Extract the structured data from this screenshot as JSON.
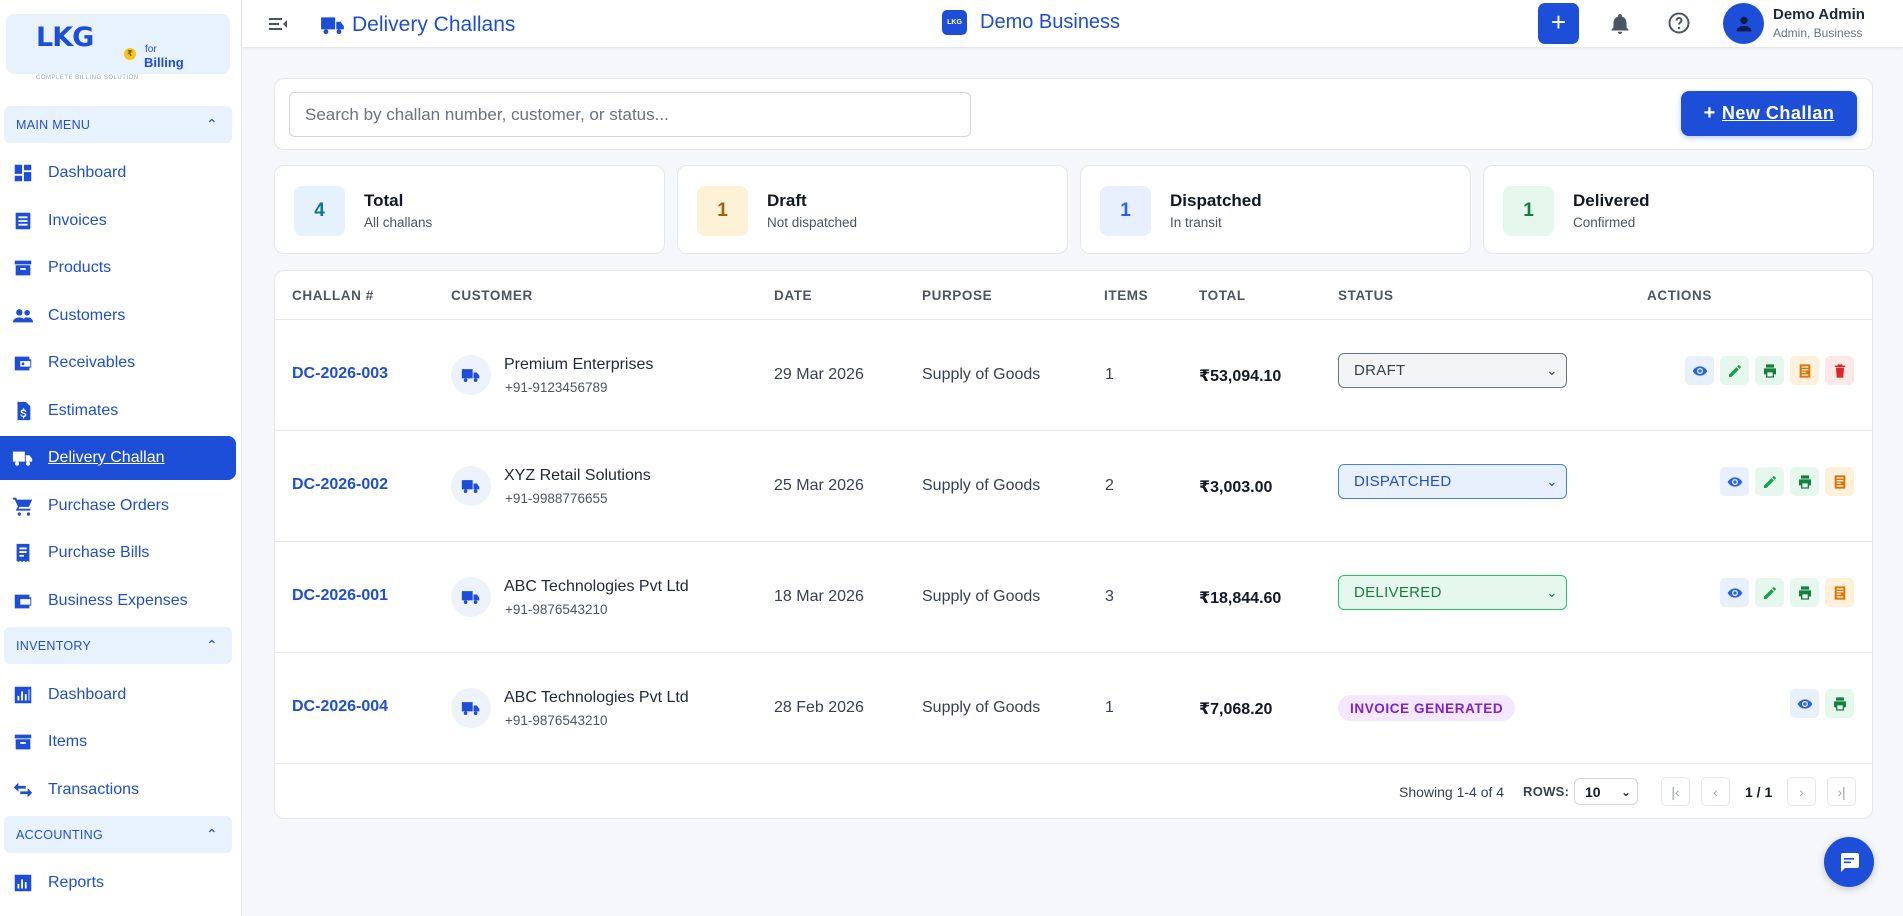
{
  "logo": {
    "brand": "LKG",
    "for": "for",
    "billing": "Billing",
    "tagline": "COMPLETE BILLING SOLUTION"
  },
  "sidebar": {
    "sections": [
      {
        "label": "MAIN MENU"
      },
      {
        "label": "INVENTORY"
      },
      {
        "label": "ACCOUNTING"
      }
    ],
    "items": [
      {
        "label": "Dashboard",
        "icon": "dashboard-icon"
      },
      {
        "label": "Invoices",
        "icon": "invoice-icon"
      },
      {
        "label": "Products",
        "icon": "products-icon"
      },
      {
        "label": "Customers",
        "icon": "customers-icon"
      },
      {
        "label": "Receivables",
        "icon": "receivables-icon"
      },
      {
        "label": "Estimates",
        "icon": "estimates-icon"
      },
      {
        "label": "Delivery Challan",
        "icon": "truck-icon"
      },
      {
        "label": "Purchase Orders",
        "icon": "cart-icon"
      },
      {
        "label": "Purchase Bills",
        "icon": "bill-icon"
      },
      {
        "label": "Business Expenses",
        "icon": "wallet-icon"
      },
      {
        "label": "Dashboard",
        "icon": "chart-icon"
      },
      {
        "label": "Items",
        "icon": "items-icon"
      },
      {
        "label": "Transactions",
        "icon": "swap-icon"
      },
      {
        "label": "Reports",
        "icon": "reports-icon"
      }
    ]
  },
  "header": {
    "title": "Delivery Challans",
    "business_logo": "LKG",
    "business": "Demo Business",
    "user_name": "Demo Admin",
    "user_role": "Admin, Business"
  },
  "search": {
    "placeholder": "Search by challan number, customer, or status...",
    "value": ""
  },
  "new_button": {
    "plus": "+",
    "label": "New Challan"
  },
  "stats": [
    {
      "value": "4",
      "label": "Total",
      "sub": "All challans",
      "color": "#0e7490",
      "bg": "#e6f2fb"
    },
    {
      "value": "1",
      "label": "Draft",
      "sub": "Not dispatched",
      "color": "#a16207",
      "bg": "#fdf1d6"
    },
    {
      "value": "1",
      "label": "Dispatched",
      "sub": "In transit",
      "color": "#2563eb",
      "bg": "#e8f0fd"
    },
    {
      "value": "1",
      "label": "Delivered",
      "sub": "Confirmed",
      "color": "#15803d",
      "bg": "#e6f7ee"
    }
  ],
  "table": {
    "headers": [
      "CHALLAN #",
      "CUSTOMER",
      "DATE",
      "PURPOSE",
      "ITEMS",
      "TOTAL",
      "STATUS",
      "ACTIONS"
    ],
    "rows": [
      {
        "id": "DC-2026-003",
        "customer": "Premium Enterprises",
        "phone": "+91-9123456789",
        "date": "29 Mar 2026",
        "purpose": "Supply of Goods",
        "items": "1",
        "total": "₹53,094.10",
        "status": "DRAFT"
      },
      {
        "id": "DC-2026-002",
        "customer": "XYZ Retail Solutions",
        "phone": "+91-9988776655",
        "date": "25 Mar 2026",
        "purpose": "Supply of Goods",
        "items": "2",
        "total": "₹3,003.00",
        "status": "DISPATCHED"
      },
      {
        "id": "DC-2026-001",
        "customer": "ABC Technologies Pvt Ltd",
        "phone": "+91-9876543210",
        "date": "18 Mar 2026",
        "purpose": "Supply of Goods",
        "items": "3",
        "total": "₹18,844.60",
        "status": "DELIVERED"
      },
      {
        "id": "DC-2026-004",
        "customer": "ABC Technologies Pvt Ltd",
        "phone": "+91-9876543210",
        "date": "28 Feb 2026",
        "purpose": "Supply of Goods",
        "items": "1",
        "total": "₹7,068.20",
        "status": "INVOICE GENERATED"
      }
    ]
  },
  "pagination": {
    "showing": "Showing 1-4 of 4",
    "rows_label": "ROWS:",
    "rows_value": "10",
    "page": "1 / 1"
  },
  "colors": {
    "accent": "#1d4ed8"
  }
}
